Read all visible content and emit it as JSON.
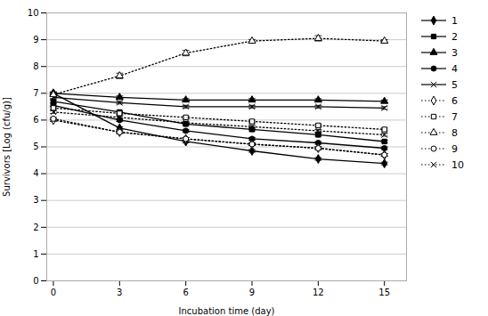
{
  "chart_data": {
    "type": "line",
    "xlabel": "Incubation time (day)",
    "ylabel": "Survivors [Log (cfu/g)]",
    "x": [
      0,
      3,
      6,
      9,
      12,
      15
    ],
    "xlim": [
      -0.3,
      16.0
    ],
    "xticks": [
      0,
      3,
      6,
      9,
      12,
      15
    ],
    "ylim": [
      0,
      10
    ],
    "yticks": [
      0,
      1,
      2,
      3,
      4,
      5,
      6,
      7,
      8,
      9,
      10
    ],
    "grid": true,
    "legend": "right",
    "color": "#000000",
    "series": [
      {
        "name": "1",
        "values": [
          7.0,
          5.7,
          5.2,
          4.85,
          4.55,
          4.38
        ],
        "yerr": [
          0.05,
          0.05,
          0.05,
          0.05,
          0.05,
          0.05
        ],
        "line_style": "solid",
        "marker": "diamond"
      },
      {
        "name": "2",
        "values": [
          6.7,
          6.3,
          5.85,
          5.65,
          5.45,
          5.2
        ],
        "yerr": [
          0.05,
          0.05,
          0.05,
          0.05,
          0.05,
          0.05
        ],
        "line_style": "solid",
        "marker": "square"
      },
      {
        "name": "3",
        "values": [
          7.0,
          6.85,
          6.75,
          6.75,
          6.75,
          6.7
        ],
        "yerr": [
          0.05,
          0.05,
          0.05,
          0.05,
          0.05,
          0.05
        ],
        "line_style": "solid",
        "marker": "triangle"
      },
      {
        "name": "4",
        "values": [
          6.55,
          6.0,
          5.6,
          5.3,
          5.15,
          4.95
        ],
        "yerr": [
          0.05,
          0.05,
          0.05,
          0.05,
          0.05,
          0.05
        ],
        "line_style": "solid",
        "marker": "circle"
      },
      {
        "name": "5",
        "values": [
          6.85,
          6.65,
          6.5,
          6.5,
          6.5,
          6.45
        ],
        "yerr": [
          0.05,
          0.05,
          0.05,
          0.05,
          0.05,
          0.05
        ],
        "line_style": "solid",
        "marker": "x"
      },
      {
        "name": "6",
        "values": [
          6.0,
          5.55,
          5.3,
          5.1,
          4.95,
          4.7
        ],
        "yerr": [
          0.05,
          0.05,
          0.05,
          0.05,
          0.05,
          0.05
        ],
        "line_style": "dotted",
        "marker": "diamond-open"
      },
      {
        "name": "7",
        "values": [
          6.45,
          6.25,
          6.1,
          5.95,
          5.8,
          5.65
        ],
        "yerr": [
          0.05,
          0.05,
          0.05,
          0.05,
          0.05,
          0.05
        ],
        "line_style": "dotted",
        "marker": "square-open"
      },
      {
        "name": "8",
        "values": [
          6.95,
          7.65,
          8.5,
          8.95,
          9.05,
          8.95
        ],
        "yerr": [
          0.05,
          0.1,
          0.1,
          0.05,
          0.1,
          0.05
        ],
        "line_style": "dotted",
        "marker": "triangle-open"
      },
      {
        "name": "9",
        "values": [
          6.05,
          5.55,
          5.3,
          5.1,
          4.95,
          4.7
        ],
        "yerr": [
          0.05,
          0.05,
          0.05,
          0.05,
          0.05,
          0.05
        ],
        "line_style": "dotted",
        "marker": "circle-open"
      },
      {
        "name": "10",
        "values": [
          6.3,
          6.1,
          5.9,
          5.75,
          5.6,
          5.45
        ],
        "yerr": [
          0.05,
          0.05,
          0.05,
          0.05,
          0.05,
          0.05
        ],
        "line_style": "dotted",
        "marker": "x"
      }
    ]
  }
}
